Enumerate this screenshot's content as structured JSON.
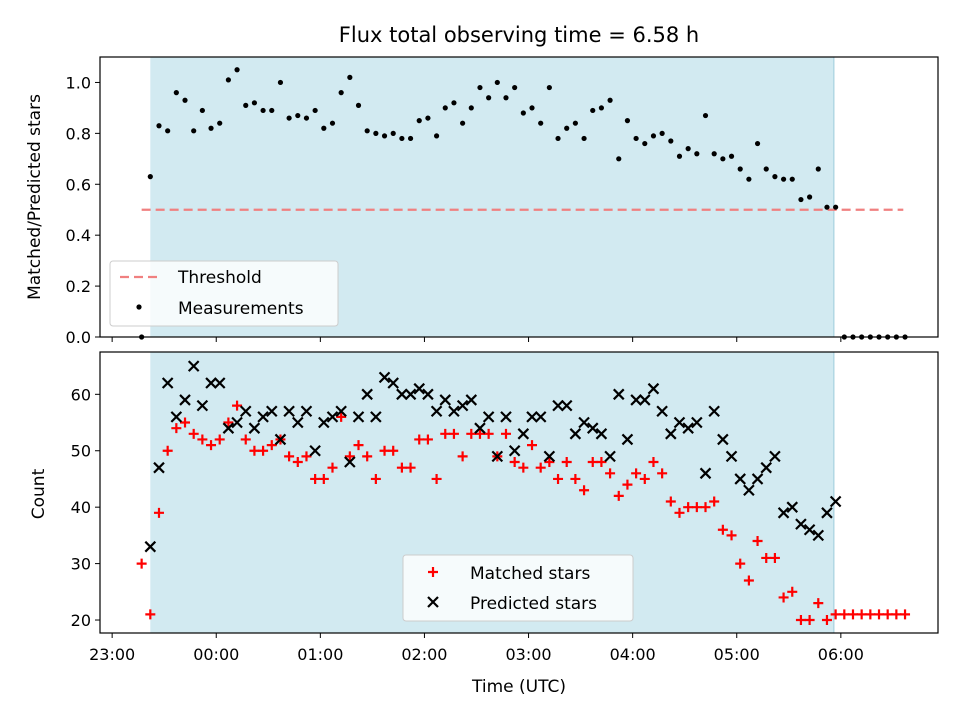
{
  "chart_data": [
    {
      "type": "scatter",
      "title": "Flux total observing time = 6.58 h",
      "xlabel": "",
      "ylabel": "Matched/Predicted stars",
      "xlim": [
        "22:53",
        "06:56"
      ],
      "ylim": [
        0,
        1.1
      ],
      "yticks": [
        "0.0",
        "0.2",
        "0.4",
        "0.6",
        "0.8",
        "1.0"
      ],
      "grid": false,
      "legend_position": "lower-left",
      "shaded_interval": [
        "23:22",
        "05:56"
      ],
      "shade_color": "#add8e6",
      "threshold": {
        "name": "Threshold",
        "value": 0.5,
        "x_range": [
          "23:17",
          "06:36"
        ],
        "color": "#f08080"
      },
      "series": [
        {
          "name": "Measurements",
          "color": "#000000",
          "points": [
            [
              "23:17",
              0.0
            ],
            [
              "23:22",
              0.63
            ],
            [
              "23:27",
              0.83
            ],
            [
              "23:32",
              0.81
            ],
            [
              "23:37",
              0.96
            ],
            [
              "23:42",
              0.93
            ],
            [
              "23:47",
              0.81
            ],
            [
              "23:52",
              0.89
            ],
            [
              "23:57",
              0.82
            ],
            [
              "00:02",
              0.84
            ],
            [
              "00:07",
              1.01
            ],
            [
              "00:12",
              1.05
            ],
            [
              "00:17",
              0.91
            ],
            [
              "00:22",
              0.92
            ],
            [
              "00:27",
              0.89
            ],
            [
              "00:32",
              0.89
            ],
            [
              "00:37",
              1.0
            ],
            [
              "00:42",
              0.86
            ],
            [
              "00:47",
              0.87
            ],
            [
              "00:52",
              0.86
            ],
            [
              "00:57",
              0.89
            ],
            [
              "01:02",
              0.82
            ],
            [
              "01:07",
              0.84
            ],
            [
              "01:12",
              0.96
            ],
            [
              "01:17",
              1.02
            ],
            [
              "01:22",
              0.91
            ],
            [
              "01:27",
              0.81
            ],
            [
              "01:32",
              0.8
            ],
            [
              "01:37",
              0.79
            ],
            [
              "01:42",
              0.8
            ],
            [
              "01:47",
              0.78
            ],
            [
              "01:52",
              0.78
            ],
            [
              "01:57",
              0.85
            ],
            [
              "02:02",
              0.86
            ],
            [
              "02:07",
              0.79
            ],
            [
              "02:12",
              0.9
            ],
            [
              "02:17",
              0.92
            ],
            [
              "02:22",
              0.84
            ],
            [
              "02:27",
              0.9
            ],
            [
              "02:32",
              0.98
            ],
            [
              "02:37",
              0.94
            ],
            [
              "02:42",
              1.0
            ],
            [
              "02:47",
              0.94
            ],
            [
              "02:52",
              0.98
            ],
            [
              "02:57",
              0.88
            ],
            [
              "03:02",
              0.9
            ],
            [
              "03:07",
              0.84
            ],
            [
              "03:12",
              0.98
            ],
            [
              "03:17",
              0.78
            ],
            [
              "03:22",
              0.82
            ],
            [
              "03:27",
              0.84
            ],
            [
              "03:32",
              0.78
            ],
            [
              "03:37",
              0.89
            ],
            [
              "03:42",
              0.9
            ],
            [
              "03:47",
              0.93
            ],
            [
              "03:52",
              0.7
            ],
            [
              "03:57",
              0.85
            ],
            [
              "04:02",
              0.78
            ],
            [
              "04:07",
              0.76
            ],
            [
              "04:12",
              0.79
            ],
            [
              "04:17",
              0.8
            ],
            [
              "04:22",
              0.77
            ],
            [
              "04:27",
              0.71
            ],
            [
              "04:32",
              0.74
            ],
            [
              "04:37",
              0.72
            ],
            [
              "04:42",
              0.87
            ],
            [
              "04:47",
              0.72
            ],
            [
              "04:52",
              0.7
            ],
            [
              "04:57",
              0.71
            ],
            [
              "05:02",
              0.66
            ],
            [
              "05:07",
              0.62
            ],
            [
              "05:12",
              0.76
            ],
            [
              "05:17",
              0.66
            ],
            [
              "05:22",
              0.63
            ],
            [
              "05:27",
              0.62
            ],
            [
              "05:32",
              0.62
            ],
            [
              "05:37",
              0.54
            ],
            [
              "05:42",
              0.55
            ],
            [
              "05:47",
              0.66
            ],
            [
              "05:52",
              0.51
            ],
            [
              "05:57",
              0.51
            ],
            [
              "06:02",
              0.0
            ],
            [
              "06:07",
              0.0
            ],
            [
              "06:12",
              0.0
            ],
            [
              "06:17",
              0.0
            ],
            [
              "06:22",
              0.0
            ],
            [
              "06:27",
              0.0
            ],
            [
              "06:32",
              0.0
            ],
            [
              "06:37",
              0.0
            ]
          ]
        }
      ]
    },
    {
      "type": "scatter",
      "title": "",
      "xlabel": "Time (UTC)",
      "ylabel": "Count",
      "xlim": [
        "22:53",
        "06:56"
      ],
      "ylim": [
        17.7,
        67.5
      ],
      "xticks": [
        "23:00",
        "00:00",
        "01:00",
        "02:00",
        "03:00",
        "04:00",
        "05:00",
        "06:00"
      ],
      "yticks": [
        "20",
        "30",
        "40",
        "50",
        "60"
      ],
      "grid": false,
      "legend_position": "lower-center",
      "shaded_interval": [
        "23:22",
        "05:56"
      ],
      "shade_color": "#add8e6",
      "series": [
        {
          "name": "Matched stars",
          "marker": "plus",
          "color": "#ff0000",
          "points": [
            [
              "23:17",
              30
            ],
            [
              "23:22",
              21
            ],
            [
              "23:27",
              39
            ],
            [
              "23:32",
              50
            ],
            [
              "23:37",
              54
            ],
            [
              "23:42",
              55
            ],
            [
              "23:47",
              53
            ],
            [
              "23:52",
              52
            ],
            [
              "23:57",
              51
            ],
            [
              "00:02",
              52
            ],
            [
              "00:07",
              55
            ],
            [
              "00:12",
              58
            ],
            [
              "00:17",
              52
            ],
            [
              "00:22",
              50
            ],
            [
              "00:27",
              50
            ],
            [
              "00:32",
              51
            ],
            [
              "00:37",
              52
            ],
            [
              "00:42",
              49
            ],
            [
              "00:47",
              48
            ],
            [
              "00:52",
              49
            ],
            [
              "00:57",
              45
            ],
            [
              "01:02",
              45
            ],
            [
              "01:07",
              47
            ],
            [
              "01:12",
              56
            ],
            [
              "01:17",
              49
            ],
            [
              "01:22",
              51
            ],
            [
              "01:27",
              49
            ],
            [
              "01:32",
              45
            ],
            [
              "01:37",
              50
            ],
            [
              "01:42",
              50
            ],
            [
              "01:47",
              47
            ],
            [
              "01:52",
              47
            ],
            [
              "01:57",
              52
            ],
            [
              "02:02",
              52
            ],
            [
              "02:07",
              45
            ],
            [
              "02:12",
              53
            ],
            [
              "02:17",
              53
            ],
            [
              "02:22",
              49
            ],
            [
              "02:27",
              53
            ],
            [
              "02:32",
              53
            ],
            [
              "02:37",
              53
            ],
            [
              "02:42",
              49
            ],
            [
              "02:47",
              53
            ],
            [
              "02:52",
              48
            ],
            [
              "02:57",
              47
            ],
            [
              "03:02",
              51
            ],
            [
              "03:07",
              47
            ],
            [
              "03:12",
              48
            ],
            [
              "03:17",
              45
            ],
            [
              "03:22",
              48
            ],
            [
              "03:27",
              45
            ],
            [
              "03:32",
              43
            ],
            [
              "03:37",
              48
            ],
            [
              "03:42",
              48
            ],
            [
              "03:47",
              46
            ],
            [
              "03:52",
              42
            ],
            [
              "03:57",
              44
            ],
            [
              "04:02",
              46
            ],
            [
              "04:07",
              45
            ],
            [
              "04:12",
              48
            ],
            [
              "04:17",
              46
            ],
            [
              "04:22",
              41
            ],
            [
              "04:27",
              39
            ],
            [
              "04:32",
              40
            ],
            [
              "04:37",
              40
            ],
            [
              "04:42",
              40
            ],
            [
              "04:47",
              41
            ],
            [
              "04:52",
              36
            ],
            [
              "04:57",
              35
            ],
            [
              "05:02",
              30
            ],
            [
              "05:07",
              27
            ],
            [
              "05:12",
              34
            ],
            [
              "05:17",
              31
            ],
            [
              "05:22",
              31
            ],
            [
              "05:27",
              24
            ],
            [
              "05:32",
              25
            ],
            [
              "05:37",
              20
            ],
            [
              "05:42",
              20
            ],
            [
              "05:47",
              23
            ],
            [
              "05:52",
              20
            ],
            [
              "05:57",
              21
            ],
            [
              "06:02",
              21
            ],
            [
              "06:07",
              21
            ],
            [
              "06:12",
              21
            ],
            [
              "06:17",
              21
            ],
            [
              "06:22",
              21
            ],
            [
              "06:27",
              21
            ],
            [
              "06:32",
              21
            ],
            [
              "06:37",
              21
            ]
          ]
        },
        {
          "name": "Predicted stars",
          "marker": "x",
          "color": "#000000",
          "points": [
            [
              "23:22",
              33
            ],
            [
              "23:27",
              47
            ],
            [
              "23:32",
              62
            ],
            [
              "23:37",
              56
            ],
            [
              "23:42",
              59
            ],
            [
              "23:47",
              65
            ],
            [
              "23:52",
              58
            ],
            [
              "23:57",
              62
            ],
            [
              "00:02",
              62
            ],
            [
              "00:07",
              54
            ],
            [
              "00:12",
              55
            ],
            [
              "00:17",
              57
            ],
            [
              "00:22",
              54
            ],
            [
              "00:27",
              56
            ],
            [
              "00:32",
              57
            ],
            [
              "00:37",
              52
            ],
            [
              "00:42",
              57
            ],
            [
              "00:47",
              55
            ],
            [
              "00:52",
              57
            ],
            [
              "00:57",
              50
            ],
            [
              "01:02",
              55
            ],
            [
              "01:07",
              56
            ],
            [
              "01:12",
              57
            ],
            [
              "01:17",
              48
            ],
            [
              "01:22",
              56
            ],
            [
              "01:27",
              60
            ],
            [
              "01:32",
              56
            ],
            [
              "01:37",
              63
            ],
            [
              "01:42",
              62
            ],
            [
              "01:47",
              60
            ],
            [
              "01:52",
              60
            ],
            [
              "01:57",
              61
            ],
            [
              "02:02",
              60
            ],
            [
              "02:07",
              57
            ],
            [
              "02:12",
              59
            ],
            [
              "02:17",
              57
            ],
            [
              "02:22",
              58
            ],
            [
              "02:27",
              59
            ],
            [
              "02:32",
              54
            ],
            [
              "02:37",
              56
            ],
            [
              "02:42",
              49
            ],
            [
              "02:47",
              56
            ],
            [
              "02:52",
              50
            ],
            [
              "02:57",
              53
            ],
            [
              "03:02",
              56
            ],
            [
              "03:07",
              56
            ],
            [
              "03:12",
              49
            ],
            [
              "03:17",
              58
            ],
            [
              "03:22",
              58
            ],
            [
              "03:27",
              53
            ],
            [
              "03:32",
              55
            ],
            [
              "03:37",
              54
            ],
            [
              "03:42",
              53
            ],
            [
              "03:47",
              49
            ],
            [
              "03:52",
              60
            ],
            [
              "03:57",
              52
            ],
            [
              "04:02",
              59
            ],
            [
              "04:07",
              59
            ],
            [
              "04:12",
              61
            ],
            [
              "04:17",
              57
            ],
            [
              "04:22",
              53
            ],
            [
              "04:27",
              55
            ],
            [
              "04:32",
              54
            ],
            [
              "04:37",
              55
            ],
            [
              "04:42",
              46
            ],
            [
              "04:47",
              57
            ],
            [
              "04:52",
              52
            ],
            [
              "04:57",
              49
            ],
            [
              "05:02",
              45
            ],
            [
              "05:07",
              43
            ],
            [
              "05:12",
              45
            ],
            [
              "05:17",
              47
            ],
            [
              "05:22",
              49
            ],
            [
              "05:27",
              39
            ],
            [
              "05:32",
              40
            ],
            [
              "05:37",
              37
            ],
            [
              "05:42",
              36
            ],
            [
              "05:47",
              35
            ],
            [
              "05:52",
              39
            ],
            [
              "05:57",
              41
            ]
          ]
        }
      ]
    }
  ]
}
